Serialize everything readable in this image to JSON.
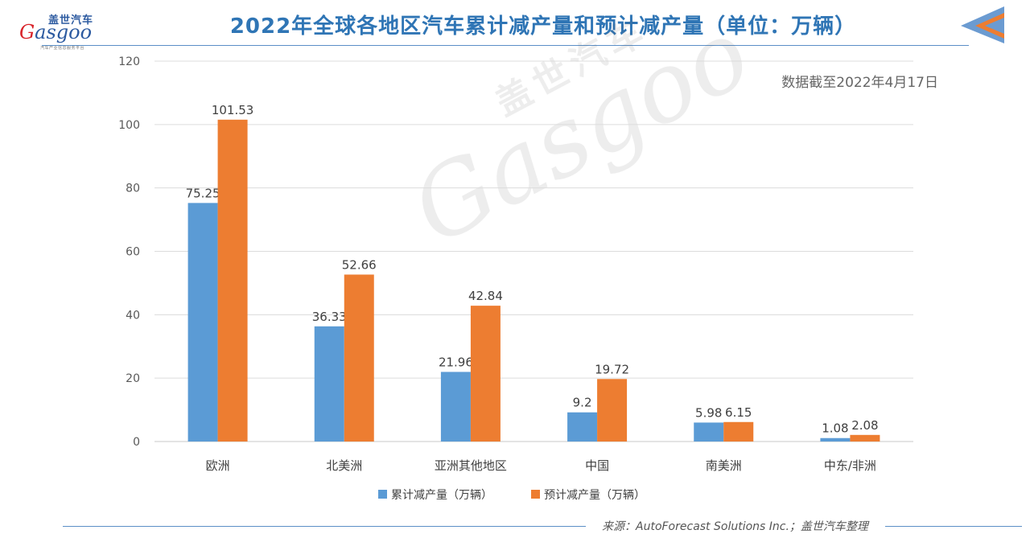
{
  "logo": {
    "cn": "盖世汽车",
    "en_first": "G",
    "en_rest": "asgoo",
    "sub": "汽车产业信息服务平台"
  },
  "title": "2022年全球各地区汽车累计减产量和预计减产量（单位：万辆）",
  "note": "数据截至2022年4月17日",
  "source": "来源：AutoForecast Solutions Inc.；盖世汽车整理",
  "watermark": {
    "cn": "盖世汽车",
    "en": "Gasgoo"
  },
  "icons": {
    "back": "back-arrow-icon"
  },
  "colors": {
    "accent": "#2f75b5",
    "series1": "#5b9bd5",
    "series2": "#ed7d31"
  },
  "chart_data": {
    "type": "bar",
    "title": "2022年全球各地区汽车累计减产量和预计减产量（单位：万辆）",
    "categories": [
      "欧洲",
      "北美洲",
      "亚洲其他地区",
      "中国",
      "南美洲",
      "中东/非洲"
    ],
    "series": [
      {
        "name": "累计减产量（万辆）",
        "color": "#5b9bd5",
        "values": [
          75.25,
          36.33,
          21.96,
          9.2,
          5.98,
          1.08
        ],
        "labels": [
          "75.25",
          "36.33",
          "21.96",
          "9.2",
          "5.98",
          "1.08"
        ]
      },
      {
        "name": "预计减产量（万辆）",
        "color": "#ed7d31",
        "values": [
          101.53,
          52.66,
          42.84,
          19.72,
          6.15,
          2.08
        ],
        "labels": [
          "101.53",
          "52.66",
          "42.84",
          "19.72",
          "6.15",
          "2.08"
        ]
      }
    ],
    "yticks": [
      0,
      20,
      40,
      60,
      80,
      100,
      120
    ],
    "ylim": [
      0,
      120
    ],
    "grid": true,
    "legend": "bottom"
  }
}
